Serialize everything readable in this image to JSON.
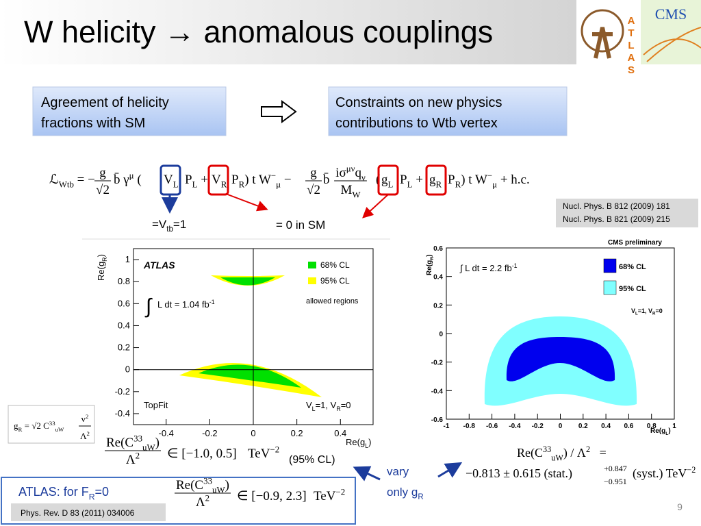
{
  "header": {
    "title": "W helicity → anomalous couplings",
    "logos": {
      "atlas": "ATLAS",
      "cms": "CMS"
    }
  },
  "boxes": [
    {
      "lines": [
        "Agreement of helicity",
        "fractions with SM"
      ]
    },
    {
      "lines": [
        "Constraints on new physics",
        "contributions to Wtb vertex"
      ]
    }
  ],
  "lagrangian": [
    "ℒ",
    "Wtb",
    " = −",
    "g",
    "√2",
    "b̄ γ",
    "μ",
    " (",
    "V",
    "L",
    "P",
    "L",
    " +",
    "V",
    "R",
    "P",
    "R",
    ") t W",
    "−",
    "μ",
    " −",
    "g",
    "√2",
    "b̄",
    "iσ",
    "μν",
    "q",
    "ν",
    "M",
    "W",
    "(",
    "g",
    "L",
    "P",
    "L",
    " +",
    "g",
    "R",
    "P",
    "R",
    ") t W",
    "−",
    "μ",
    " + h.c."
  ],
  "notes": {
    "vtb": [
      "=V",
      "tb",
      "=1"
    ],
    "sm": "= 0 in SM"
  },
  "references": [
    "Nucl. Phys. B 812 (2009) 181",
    "Nucl. Phys. B 821 (2009) 215"
  ],
  "plots": [
    {
      "experiment": "ATLAS",
      "x_label": [
        "Re(g",
        "L",
        ")"
      ],
      "y_label": [
        "Re(g",
        "R",
        ")"
      ],
      "xlim": [
        -0.55,
        0.55
      ],
      "ylim": [
        -0.5,
        1.1
      ],
      "xticks": [
        -0.4,
        -0.2,
        0,
        0.2,
        0.4
      ],
      "yticks": [
        -0.4,
        -0.2,
        0,
        0.2,
        0.4,
        0.6,
        0.8,
        1
      ],
      "legend": [
        {
          "label": "68% CL",
          "color": "#00e000"
        },
        {
          "label": "95% CL",
          "color": "#ffff00"
        }
      ],
      "legend_note": "allowed regions",
      "luminosity": [
        "∫",
        "L dt = 1.04 fb",
        "-1"
      ],
      "tool": "TopFit",
      "assumption": [
        "V",
        "L",
        "=1, V",
        "R",
        "=0"
      ]
    },
    {
      "experiment": "CMS preliminary",
      "x_label": [
        "Re(g",
        "L",
        ")"
      ],
      "y_label": [
        "Re(g",
        "R",
        ")"
      ],
      "xlim": [
        -1,
        1
      ],
      "ylim": [
        -0.6,
        0.6
      ],
      "xticks": [
        -1,
        -0.8,
        -0.6,
        -0.4,
        -0.2,
        0,
        0.2,
        0.4,
        0.6,
        0.8,
        1
      ],
      "yticks": [
        -0.6,
        -0.4,
        -0.2,
        0,
        0.2,
        0.4,
        0.6
      ],
      "legend": [
        {
          "label": "68% CL",
          "color": "#0000ee"
        },
        {
          "label": "95% CL",
          "color": "#80ffff"
        }
      ],
      "luminosity": [
        "∫ L dt = 2.2 fb",
        "-1"
      ],
      "assumption": [
        "V",
        "L",
        "=1, V",
        "R",
        "=0"
      ]
    }
  ],
  "gr_relation": [
    "g",
    "R",
    " = √2 ",
    "C",
    "33",
    "uW",
    "v",
    "2",
    "Λ",
    "2"
  ],
  "atlas_bound": {
    "numerator": [
      "Re",
      "(C",
      "33",
      "uW",
      ")"
    ],
    "denominator": [
      "Λ",
      "2"
    ],
    "relation": "∈ [−1.0, 0.5]",
    "unit": [
      "TeV",
      "−2"
    ],
    "note": "(95% CL)"
  },
  "vary": [
    "vary",
    "only g",
    "R"
  ],
  "cms_result": {
    "lhs": [
      "Re(C",
      "33",
      "uW",
      ")",
      " / Λ",
      "2",
      "   ="
    ],
    "rhs": [
      "−0.813 ± 0.615 (stat.)",
      "+0.847",
      "−0.951",
      "(syst.) TeV",
      "−2"
    ]
  },
  "atlas_fr0": {
    "label": [
      "ATLAS: for F",
      "R",
      "=0"
    ],
    "numerator": [
      "Re",
      "(C",
      "33",
      "uW",
      ")"
    ],
    "denominator": [
      "Λ",
      "2"
    ],
    "relation": "∈ [−0.9, 2.3]",
    "unit": [
      "TeV",
      "−2"
    ],
    "reference": "Phys. Rev. D 83 (2011) 034006"
  },
  "page_number": "9"
}
